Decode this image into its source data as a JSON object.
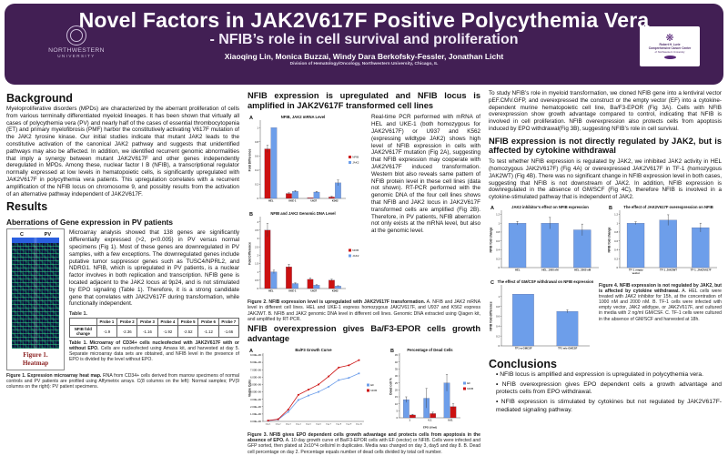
{
  "colors": {
    "header_purple": "#421f54",
    "bar_red": "#cc1111",
    "bar_blue": "#6d9eea",
    "heatmap_navy": "#10103a",
    "figure_label_maroon": "#8b1f1f"
  },
  "header": {
    "title": "Novel Factors in JAK2V617F Positive Polycythemia Vera",
    "subtitle": "- NFIB’s role in cell survival and proliferation",
    "authors": "Xiaoqing Lin, Monica Buzzai, Windy Dara Berkofsky-Fessler, Jonathan Licht",
    "division": "Division of Hematology/Oncology, Northwestern University, Chicago, IL",
    "left_logo": {
      "line1": "NORTHWESTERN",
      "line2": "UNIVERSITY"
    },
    "right_logo": {
      "line1": "Robert H. Lurie",
      "line2": "Comprehensive Cancer Center",
      "line3": "of Northwestern University"
    }
  },
  "background": {
    "heading": "Background",
    "body": "Myeloproliferative disorders (MPDs) are characterized by the aberrant proliferation of cells from various terminally differentiated myeloid lineages. It has been shown that virtually all cases of polycythemia vera (PV) and nearly half of the cases of essential thrombocytopenia (ET) and primary myelofibrosis (PMF) harbor the constitutively activating V617F mutation of the JAK2 tyrosine kinase. Our initial studies indicate that mutant JAK2 leads to the constitutive activation of the canonical JAK2 pathway and suggests that unidentified pathways may also be affected. In addition, we identified recurrent genomic abnormalities that imply a synergy between mutant JAK2V617F and other genes independently deregulated in MPDs. Among these, nuclear factor I B (NFIB), a transcriptional regulator normally expressed at low levels in hematopoietic cells, is significantly upregulated with JAK2V617F in polycythemia vera patients. This upregulation correlates with a recurrent amplification of the NFIB locus on chromosome 9, and possibly results from the activation of an alternative pathway independent of JAK2V617F."
  },
  "results": {
    "heading": "Results",
    "sub1": "Aberrations of Gene expression in PV patients",
    "body1": "Microarray analysis showed that 138 genes are significantly differentially expressed (>2, p<0.005) in PV versus normal specimens (Fig 1). Most of these genes are downregulated in PV samples, with a few exceptions. The downregulated genes include putative tumor suppressor genes such as TUSC4/NPRL2, and NDRG1. NFIB, which is upregulated in PV patients, is a nuclear factor involves in both replication and transcription. NFIB gene is located adjacent to the JAK2 locus at 9p24, and is not stimulated by EPO signaling (Table 1). Therefore, it is a strong candidate gene that correlates with JAK2V617F during transformation, while functionally independent."
  },
  "figure1": {
    "col_c": "C",
    "col_pv": "PV",
    "label_line1": "Figure 1.",
    "label_line2": "Heatmap",
    "caption_bold": "Figure 1. Expression microarray heat map.",
    "caption": " RNA from CD34+ cells derived from marrow specimens of normal controls and PV patients are profiled using Affymetrix arrays. C(8 columns on the left): Normal samples; PV(9 columns on the right): PV patient specimens."
  },
  "table1": {
    "label": "Table 1.",
    "row_header": "NFIB fold change",
    "headers": [
      "Probe 1",
      "Probe 2",
      "Probe 3",
      "Probe 4",
      "Probe 5",
      "Probe 6",
      "Probe 7"
    ],
    "values": [
      "-1.9",
      "-2.36",
      "-1.16",
      "-1.92",
      "-2.52",
      "-1.12",
      "-1.66"
    ],
    "caption_bold": "Table 1. Microarray of CD34+ cells nucleofected with JAK2V617F with or without EPO.",
    "caption": " Cells are nucleofected using Amaxa kit, and harvested at day 5. Separate microarray data sets are obtained, and NFIB level in the presence of EPO is divided by the level without EPO."
  },
  "middle": {
    "heading1": "NFIB expression is upregulated and NFIB locus is amplified in JAK2V617F transformed cell lines",
    "body1": "Real-time PCR performed with mRNA of HEL and UKE-1 (both homozygous for JAK2V617F) or U937 and K562 (expressing wildtype JAK2) shows high level of NFIB expression in cells with JAK2V617F mutation (Fig 2A), suggesting that NFIB expression may cooperate with JAK2V617F induced transformation. Western blot also reveals same pattern of NFIB protein level in these cell lines (data not shown). RT-PCR performed with the genomic DNA of the four cell lines shows that NFIB and JAK2 locus in JAK2V617F transformed cells are amplified (Fig 2B). Therefore, in PV patients, NFIB aberration not only exists at the mRNA level, but also at the genomic level.",
    "fig2_caption_bold": "Figure 2. NFIB expression level is upregulated with JAK2V617F transformation.",
    "fig2_caption": " A. NFIB and JAK2 mRNA level in different cell lines. HEL and UKE-1 express homozygous JAK2V617F, and U937 and K562 express JAK2WT. B. NFIB and JAK2 genomic DNA level in different cell lines. Genomic DNA extracted using Qiagen kit, and amplified by RT-PCR.",
    "heading2": "NFIB overexpression gives Ba/F3-EPOR cells growth advantage",
    "fig3_caption_bold": "Figure 3. NFIB gives EPO dependent cells growth advantage and protects cells from apoptosis in the absence of EPO.",
    "fig3_caption": " A. 10 day growth curve of Ba/F3-EPOR cells with EF (vector) or NFIB. Cells were infected and GFP sorted, then plated at 2x10^4 cells/ml in duplicates. Media was changed on day 3, day5 and day 8. B. Dead cell percentage on day 2. Percentage equals number of dead cells divided by total cell number."
  },
  "right": {
    "body1": "To study NFIB’s role in myeloid transformation, we cloned NFIB gene into a lentiviral vector pEF.CMV.GFP, and overexpressed the construct or the empty vector (EF) into a cytokine-dependent murine hematopoietic cell line, Ba/F3-EPOR (Fig 3A). Cells with NFIB overexpression show growth advantage compared to control, indicating that NFIB is involved in cell proliferation. NFIB overexpression also protects cells from apoptosis induced by EPO withdrawal(Fig 3B), suggesting NFIB’s role in cell survival.",
    "heading": "NFIB expression is not directly regulated by JAK2, but is affected by cytokine withdrawal",
    "body2": "To test whether NFIB expression is regulated by JAK2, we inhibited JAK2 activity in HEL (homozygous JAK2V617F) (Fig 4A) or overexpressed JAK2V617F in TF-1 (homozygous JAK2WT) (Fig 4B). There was no significant change in NFIB expression level in both cases, suggesting that NFIB is not downstream of JAK2. In addition, NFIB expression is downregulated in the absence of GM/SCF (Fig 4C), therefore NFIB is involved in a cytokine-stimulated pathway that is independent of JAK2.",
    "fig4_caption_bold": "Figure 4. NFIB expression is not regulated by JAK2, but is affected by cytokine withdrawal.",
    "fig4_caption": " A. HEL cells were treated with JAK2 inhibitor for 15h, at the concentration of 1000 nM and 2000 nM. B. TF-1 cells were infected with empty vector, JAK2 wildtype, or JAK2V617F, and cultured in media with 2 ng/ml GM/CSF. C. TF-1 cells were cultured in the absence of GM/SCF and harvested at 18h."
  },
  "conclusions": {
    "heading": "Conclusions",
    "bullets": [
      "NFIB locus is amplified and expression is upregulated in polycythemia vera.",
      "NFIB overexpression gives EPO dependent cells a growth advantage and protects cells from EPO withdrawal.",
      "NFIB expression is stimulated by cytokines but not regulated by JAK2V617F-mediated signaling pathway."
    ]
  },
  "chart_data": {
    "fig2a": {
      "type": "bar",
      "panel": "A",
      "title": "NFIB, JAK2 mRNA Level",
      "categories": [
        "HEL",
        "UKE-1",
        "U937",
        "K562"
      ],
      "series": [
        {
          "name": "NFIB",
          "color": "#cc1111",
          "values": [
            0.7,
            0.07,
            0.01,
            0.02
          ],
          "errors": [
            0.05,
            0.01,
            0,
            0.01
          ]
        },
        {
          "name": "JAK2",
          "color": "#6d9eea",
          "values": [
            1.0,
            0.1,
            0.09,
            0.22
          ],
          "errors": [
            0,
            0.01,
            0.01,
            0.04
          ]
        }
      ],
      "ylabel": "Fold Difference",
      "ylim": [
        0,
        1.08
      ],
      "yticks": [
        0,
        0.2,
        0.4,
        0.6,
        0.8,
        1
      ],
      "legend_position": "right",
      "grid": false
    },
    "fig2b": {
      "type": "bar",
      "panel": "B",
      "title": "NFIB and JAK2 Genomic DNA Level",
      "categories": [
        "HEL",
        "UKE-1",
        "U937",
        "K562"
      ],
      "series": [
        {
          "name": "NFIB",
          "color": "#cc1111",
          "values": [
            3.5,
            1.3,
            0.55,
            0.5
          ],
          "errors": [
            0.4,
            0.15,
            0.08,
            0.06
          ]
        },
        {
          "name": "JAK2",
          "color": "#6d9eea",
          "values": [
            1.0,
            0.3,
            0.2,
            0.15
          ],
          "errors": [
            0.1,
            0.04,
            0.03,
            0.02
          ]
        }
      ],
      "ylabel": "Fold Difference",
      "ylim": [
        0,
        4.2
      ],
      "yticks": [
        0,
        0.5,
        1,
        1.5,
        2,
        2.5,
        3,
        3.5,
        4
      ],
      "legend_position": "right",
      "grid": false
    },
    "fig3a": {
      "type": "line",
      "panel": "A",
      "title": "Ba/F3 Growth Curve",
      "x": [
        "Day 1",
        "Day 2",
        "Day 3",
        "Day 4",
        "Day 5",
        "Day 6",
        "Day 7",
        "Day 8",
        "Day 9",
        "Day 10"
      ],
      "series": [
        {
          "name": "EF",
          "color": "#6d9eea",
          "values": [
            100000,
            250000,
            1300000,
            2900000,
            3500000,
            4000000,
            4700000,
            5600000,
            5900000,
            6500000
          ]
        },
        {
          "name": "NFIB",
          "color": "#cc1111",
          "values": [
            120000,
            300000,
            1600000,
            3600000,
            4300000,
            5000000,
            6100000,
            7300000,
            7600000,
            8300000
          ]
        }
      ],
      "ylabel": "Viable Cells",
      "ylim": [
        0,
        9000000
      ],
      "yticks": [
        "0.00E+00",
        "1.00E+06",
        "2.00E+06",
        "3.00E+06",
        "4.00E+06",
        "5.00E+06",
        "6.00E+06",
        "7.00E+06",
        "8.00E+06",
        "9.00E+06"
      ],
      "ml": 17,
      "legend_position": "right",
      "grid": false
    },
    "fig3b": {
      "type": "bar",
      "panel": "B",
      "title": "Percentage of Dead Cells",
      "categories": [
        "1",
        "0.1",
        "0.01"
      ],
      "xlabel": "EPO (U/ml)",
      "series": [
        {
          "name": "EF",
          "color": "#6d9eea",
          "values": [
            13,
            14,
            25
          ],
          "errors": [
            2,
            7,
            6
          ]
        },
        {
          "name": "NFIB",
          "color": "#cc1111",
          "values": [
            2,
            3,
            8
          ],
          "errors": [
            0.5,
            1,
            2
          ]
        }
      ],
      "ylabel": "Dead cell %",
      "ylim": [
        0,
        45
      ],
      "yticks": [
        0,
        5,
        10,
        15,
        20,
        25,
        30,
        35,
        40,
        45
      ],
      "ml": 12,
      "legend_position": "right",
      "grid": false
    },
    "fig4a": {
      "type": "bar",
      "panel": "A",
      "title": "JAK2 inhibitor's effect on NFIB expression",
      "categories": [
        "HEL",
        "HEL_1000 nM",
        "HEL_2000 nM"
      ],
      "color": "#6d9eea",
      "values": [
        1.0,
        1.0,
        0.85
      ],
      "errors": [
        0.04,
        0.13,
        0.13
      ],
      "ylabel": "NFIB fold change",
      "ylim": [
        0,
        1.25
      ],
      "yticks": [
        0,
        0.2,
        0.4,
        0.6,
        0.8,
        1,
        1.2
      ],
      "grid": false
    },
    "fig4b": {
      "type": "bar",
      "panel": "B",
      "title": "The effect of JAK2V617F overexpression on NFIB",
      "categories": [
        "TF-1_empty\nvector",
        "TF-1_JAK2WT",
        "TF-1_JAK2V617F"
      ],
      "color": "#6d9eea",
      "values": [
        1.0,
        1.07,
        0.9
      ],
      "errors": [
        0.03,
        0.12,
        0.1
      ],
      "ylabel": "NFIB fold change",
      "ylim": [
        0,
        1.25
      ],
      "yticks": [
        0,
        0.2,
        0.4,
        0.6,
        0.8,
        1,
        1.2
      ],
      "grid": false
    },
    "fig4c": {
      "type": "bar",
      "panel": "C",
      "title": "The effect of GM/CSF withdrawal on NFIB expression",
      "categories": [
        "TF1 w GMCSF",
        "TF1 w/o GMCSF"
      ],
      "color": "#6d9eea",
      "values": [
        1.05,
        0.7
      ],
      "errors": [
        0,
        0.03
      ],
      "ylabel": "NFIB fold difference",
      "ylim": [
        0,
        1.2
      ],
      "yticks": [
        0,
        0.2,
        0.4,
        0.6,
        0.8,
        1
      ],
      "grid": false
    }
  }
}
